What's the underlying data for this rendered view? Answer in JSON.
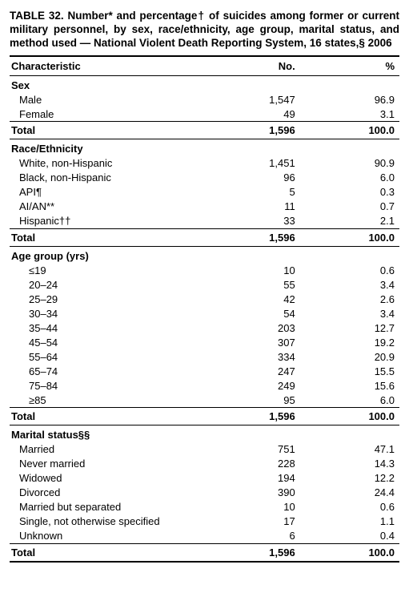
{
  "title": "TABLE 32. Number* and percentage† of suicides among former or current military personnel, by sex, race/ethnicity, age group, marital status, and method used — National Violent Death Reporting System, 16 states,§ 2006",
  "columns": {
    "characteristic": "Characteristic",
    "no": "No.",
    "pct": "%"
  },
  "sections": [
    {
      "header": "Sex",
      "rows": [
        {
          "label": "Male",
          "no": "1,547",
          "pct": "96.9"
        },
        {
          "label": "Female",
          "no": "49",
          "pct": "3.1"
        }
      ],
      "total": {
        "label": "Total",
        "no": "1,596",
        "pct": "100.0"
      }
    },
    {
      "header": "Race/Ethnicity",
      "rows": [
        {
          "label": "White, non-Hispanic",
          "no": "1,451",
          "pct": "90.9"
        },
        {
          "label": "Black, non-Hispanic",
          "no": "96",
          "pct": "6.0"
        },
        {
          "label": "API¶",
          "no": "5",
          "pct": "0.3"
        },
        {
          "label": "AI/AN**",
          "no": "11",
          "pct": "0.7"
        },
        {
          "label": "Hispanic††",
          "no": "33",
          "pct": "2.1"
        }
      ],
      "total": {
        "label": "Total",
        "no": "1,596",
        "pct": "100.0"
      }
    },
    {
      "header": "Age group (yrs)",
      "indent": "indent2",
      "rows": [
        {
          "label": "≤19",
          "no": "10",
          "pct": "0.6"
        },
        {
          "label": "20–24",
          "no": "55",
          "pct": "3.4"
        },
        {
          "label": "25–29",
          "no": "42",
          "pct": "2.6"
        },
        {
          "label": "30–34",
          "no": "54",
          "pct": "3.4"
        },
        {
          "label": "35–44",
          "no": "203",
          "pct": "12.7"
        },
        {
          "label": "45–54",
          "no": "307",
          "pct": "19.2"
        },
        {
          "label": "55–64",
          "no": "334",
          "pct": "20.9"
        },
        {
          "label": "65–74",
          "no": "247",
          "pct": "15.5"
        },
        {
          "label": "75–84",
          "no": "249",
          "pct": "15.6"
        },
        {
          "label": "≥85",
          "no": "95",
          "pct": "6.0"
        }
      ],
      "total": {
        "label": "Total",
        "no": "1,596",
        "pct": "100.0"
      }
    },
    {
      "header": "Marital status§§",
      "rows": [
        {
          "label": "Married",
          "no": "751",
          "pct": "47.1"
        },
        {
          "label": "Never married",
          "no": "228",
          "pct": "14.3"
        },
        {
          "label": "Widowed",
          "no": "194",
          "pct": "12.2"
        },
        {
          "label": "Divorced",
          "no": "390",
          "pct": "24.4"
        },
        {
          "label": "Married but separated",
          "no": "10",
          "pct": "0.6"
        },
        {
          "label": "Single, not otherwise specified",
          "no": "17",
          "pct": "1.1"
        },
        {
          "label": "Unknown",
          "no": "6",
          "pct": "0.4"
        }
      ],
      "total": {
        "label": "Total",
        "no": "1,596",
        "pct": "100.0"
      }
    }
  ]
}
